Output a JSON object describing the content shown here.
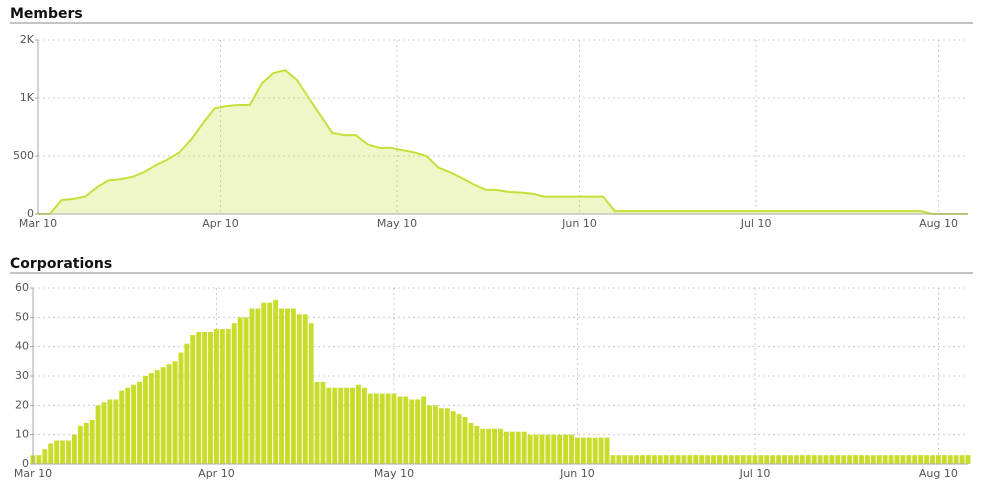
{
  "chart_data": [
    {
      "type": "area",
      "title": "Members",
      "color": "#c6df3a",
      "grid": true,
      "xlim": [
        69,
        227
      ],
      "xticks": [
        {
          "value": 69,
          "label": "Mar 10"
        },
        {
          "value": 100,
          "label": "Apr 10"
        },
        {
          "value": 130,
          "label": "May 10"
        },
        {
          "value": 161,
          "label": "Jun 10"
        },
        {
          "value": 191,
          "label": "Jul 10"
        },
        {
          "value": 222,
          "label": "Aug 10"
        }
      ],
      "ylim": [
        0,
        2000
      ],
      "yticks": [
        0,
        500,
        {
          "value": 1000,
          "label": "1K"
        },
        {
          "value": 2000,
          "label": "2K"
        }
      ],
      "x": [
        69,
        71,
        73,
        75,
        77,
        79,
        81,
        83,
        85,
        87,
        89,
        91,
        93,
        95,
        97,
        99,
        101,
        103,
        105,
        107,
        109,
        111,
        113,
        115,
        117,
        119,
        121,
        123,
        125,
        127,
        129,
        131,
        133,
        135,
        137,
        139,
        141,
        143,
        145,
        147,
        149,
        151,
        153,
        155,
        157,
        159,
        161,
        163,
        165,
        167,
        169,
        171,
        173,
        175,
        177,
        179,
        181,
        183,
        185,
        187,
        189,
        191,
        193,
        195,
        197,
        199,
        201,
        203,
        205,
        207,
        209,
        211,
        213,
        215,
        217,
        219,
        221,
        223,
        225,
        227
      ],
      "values": [
        0,
        0,
        120,
        130,
        150,
        230,
        290,
        300,
        320,
        360,
        420,
        470,
        530,
        640,
        780,
        910,
        930,
        940,
        940,
        1250,
        1430,
        1480,
        1310,
        1000,
        850,
        700,
        680,
        680,
        600,
        570,
        570,
        550,
        530,
        500,
        400,
        360,
        310,
        255,
        210,
        207,
        190,
        185,
        175,
        150,
        150,
        150,
        150,
        150,
        150,
        25,
        25,
        25,
        25,
        25,
        25,
        25,
        25,
        25,
        25,
        25,
        25,
        25,
        25,
        25,
        25,
        25,
        25,
        25,
        25,
        25,
        25,
        25,
        25,
        25,
        25,
        25,
        0,
        0,
        0,
        0
      ]
    },
    {
      "type": "bar",
      "title": "Corporations",
      "color": "#c8dc2c",
      "grid": true,
      "xlim": [
        69,
        227
      ],
      "xticks": [
        {
          "value": 69,
          "label": "Mar 10"
        },
        {
          "value": 100,
          "label": "Apr 10"
        },
        {
          "value": 130,
          "label": "May 10"
        },
        {
          "value": 161,
          "label": "Jun 10"
        },
        {
          "value": 191,
          "label": "Jul 10"
        },
        {
          "value": 222,
          "label": "Aug 10"
        }
      ],
      "ylim": [
        0,
        60
      ],
      "yticks": [
        0,
        10,
        20,
        30,
        40,
        50,
        60
      ],
      "x": [
        69,
        70,
        71,
        72,
        73,
        74,
        75,
        76,
        77,
        78,
        79,
        80,
        81,
        82,
        83,
        84,
        85,
        86,
        87,
        88,
        89,
        90,
        91,
        92,
        93,
        94,
        95,
        96,
        97,
        98,
        99,
        100,
        101,
        102,
        103,
        104,
        105,
        106,
        107,
        108,
        109,
        110,
        111,
        112,
        113,
        114,
        115,
        116,
        117,
        118,
        119,
        120,
        121,
        122,
        123,
        124,
        125,
        126,
        127,
        128,
        129,
        130,
        131,
        132,
        133,
        134,
        135,
        136,
        137,
        138,
        139,
        140,
        141,
        142,
        143,
        144,
        145,
        146,
        147,
        148,
        149,
        150,
        151,
        152,
        153,
        154,
        155,
        156,
        157,
        158,
        159,
        160,
        161,
        162,
        163,
        164,
        165,
        166,
        167,
        168,
        169,
        170,
        171,
        172,
        173,
        174,
        175,
        176,
        177,
        178,
        179,
        180,
        181,
        182,
        183,
        184,
        185,
        186,
        187,
        188,
        189,
        190,
        191,
        192,
        193,
        194,
        195,
        196,
        197,
        198,
        199,
        200,
        201,
        202,
        203,
        204,
        205,
        206,
        207,
        208,
        209,
        210,
        211,
        212,
        213,
        214,
        215,
        216,
        217,
        218,
        219,
        220,
        221,
        222,
        223,
        224,
        225,
        226,
        227
      ],
      "values": [
        3,
        3,
        5,
        7,
        8,
        8,
        8,
        10,
        13,
        14,
        15,
        20,
        21,
        22,
        22,
        25,
        26,
        27,
        28,
        30,
        31,
        32,
        33,
        34,
        35,
        38,
        41,
        44,
        45,
        45,
        45,
        46,
        46,
        46,
        48,
        50,
        50,
        53,
        53,
        55,
        55,
        56,
        53,
        53,
        53,
        51,
        51,
        48,
        28,
        28,
        26,
        26,
        26,
        26,
        26,
        27,
        26,
        24,
        24,
        24,
        24,
        24,
        23,
        23,
        22,
        22,
        23,
        20,
        20,
        19,
        19,
        18,
        17,
        16,
        14,
        13,
        12,
        12,
        12,
        12,
        11,
        11,
        11,
        11,
        10,
        10,
        10,
        10,
        10,
        10,
        10,
        10,
        9,
        9,
        9,
        9,
        9,
        9,
        3,
        3,
        3,
        3,
        3,
        3,
        3,
        3,
        3,
        3,
        3,
        3,
        3,
        3,
        3,
        3,
        3,
        3,
        3,
        3,
        3,
        3,
        3,
        3,
        3,
        3,
        3,
        3,
        3,
        3,
        3,
        3,
        3,
        3,
        3,
        3,
        3,
        3,
        3,
        3,
        3,
        3,
        3,
        3,
        3,
        3,
        3,
        3,
        3,
        3,
        3,
        3,
        3,
        3,
        3,
        3,
        3,
        3,
        3,
        3,
        3
      ]
    }
  ]
}
